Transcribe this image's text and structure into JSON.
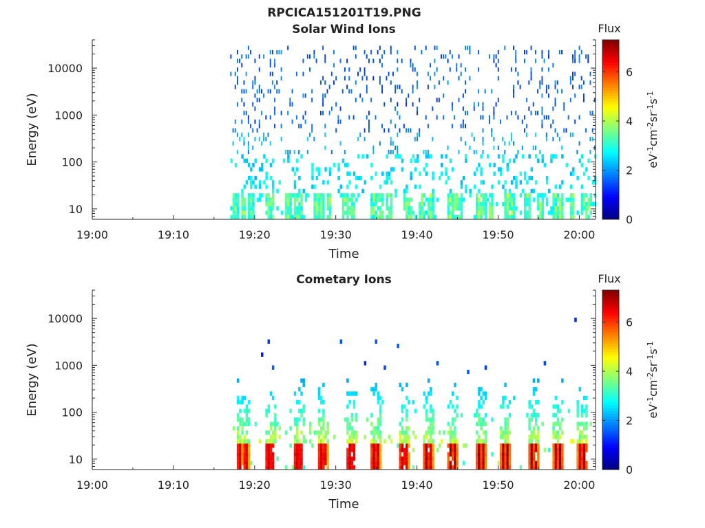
{
  "figure_title": "RPCICA151201T19.PNG",
  "chart_data": [
    {
      "type": "heatmap",
      "title": "Solar Wind Ions",
      "xlabel": "Time",
      "ylabel": "Energy (eV)",
      "yscale": "log",
      "ylim": [
        6,
        40000
      ],
      "xlim": [
        "19:00",
        "20:02"
      ],
      "x_ticks": [
        "19:00",
        "19:10",
        "19:20",
        "19:30",
        "19:40",
        "19:50",
        "20:00"
      ],
      "y_ticks": [
        "10",
        "100",
        "1000",
        "10000"
      ],
      "y_tick_values": [
        10,
        100,
        1000,
        10000
      ],
      "data_start": "19:17",
      "colorbar": {
        "title": "Flux",
        "label": "eV-1cm-2sr-1s-1",
        "ticks": [
          "0",
          "2",
          "4",
          "6"
        ],
        "tick_values": [
          0,
          2,
          4,
          6
        ],
        "range": [
          0,
          7.3
        ],
        "colormap": "jet"
      },
      "bursts_at_minutes": [
        17.5,
        18.5,
        19.5,
        21.5,
        22,
        24,
        25,
        25.5,
        27.5,
        28,
        29,
        31,
        31.5,
        32,
        34.5,
        35,
        35.5,
        36.5,
        38.5,
        39,
        40.5,
        41.5,
        44,
        44.5,
        45,
        47.5,
        48,
        49,
        51,
        51.5,
        53.5,
        55,
        57,
        57.5,
        59,
        60.5,
        61
      ],
      "population": "scattered low flux 1-3 from 30 eV to 25 keV; enhanced 3-5 below 20 eV in bursts",
      "grid": false,
      "legend": "none"
    },
    {
      "type": "heatmap",
      "title": "Cometary Ions",
      "xlabel": "Time",
      "ylabel": "Energy (eV)",
      "yscale": "log",
      "ylim": [
        6,
        40000
      ],
      "xlim": [
        "19:00",
        "20:02"
      ],
      "x_ticks": [
        "19:00",
        "19:10",
        "19:20",
        "19:30",
        "19:40",
        "19:50",
        "20:00"
      ],
      "y_ticks": [
        "10",
        "100",
        "1000",
        "10000"
      ],
      "y_tick_values": [
        10,
        100,
        1000,
        10000
      ],
      "data_start": "19:17",
      "colorbar": {
        "title": "Flux",
        "label": "eV-1cm-2sr-1s-1",
        "ticks": [
          "0",
          "2",
          "4",
          "6"
        ],
        "tick_values": [
          0,
          2,
          4,
          6
        ],
        "range": [
          0,
          7.3
        ],
        "colormap": "jet"
      },
      "bursts_at_minutes": [
        18,
        18.8,
        21.5,
        22,
        25,
        25.5,
        28,
        28.5,
        31.5,
        32,
        34.5,
        35,
        38,
        38.5,
        41,
        41.5,
        44,
        44.5,
        47.5,
        48,
        50.5,
        51,
        54,
        54.5,
        57,
        57.5,
        60,
        60.5
      ],
      "population": "intense 6-7 below 20 eV, plumes decreasing to ~2 up to 500 eV, sparse points to 8 keV",
      "grid": false,
      "legend": "none"
    }
  ]
}
